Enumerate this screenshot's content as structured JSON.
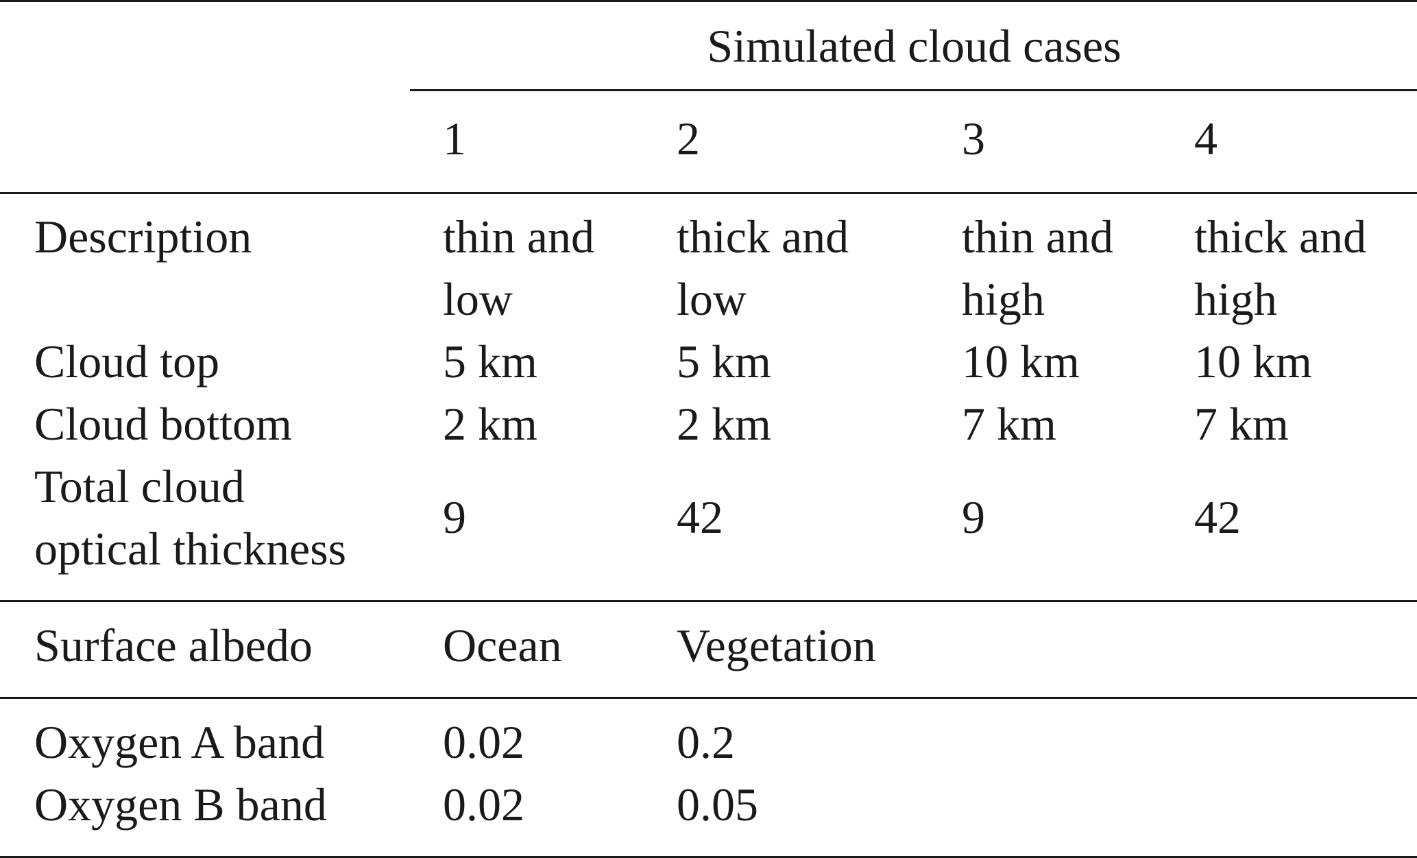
{
  "table": {
    "group_header": "Simulated cloud cases",
    "case_numbers": [
      "1",
      "2",
      "3",
      "4"
    ],
    "description": {
      "label": "Description",
      "values": [
        [
          "thin and",
          "low"
        ],
        [
          "thick and",
          "low"
        ],
        [
          "thin and",
          "high"
        ],
        [
          "thick and",
          "high"
        ]
      ]
    },
    "cloud_top": {
      "label": "Cloud top",
      "values": [
        "5 km",
        "5 km",
        "10 km",
        "10 km"
      ]
    },
    "cloud_bottom": {
      "label": "Cloud bottom",
      "values": [
        "2 km",
        "2 km",
        "7 km",
        "7 km"
      ]
    },
    "optical_thickness": {
      "label_lines": [
        "Total cloud",
        "optical thickness"
      ],
      "values": [
        "9",
        "42",
        "9",
        "42"
      ]
    },
    "surface_albedo": {
      "label": "Surface albedo",
      "columns": [
        "Ocean",
        "Vegetation"
      ]
    },
    "oxygen_a": {
      "label": "Oxygen A band",
      "values": [
        "0.02",
        "0.2"
      ]
    },
    "oxygen_b": {
      "label": "Oxygen B band",
      "values": [
        "0.02",
        "0.05"
      ]
    }
  }
}
